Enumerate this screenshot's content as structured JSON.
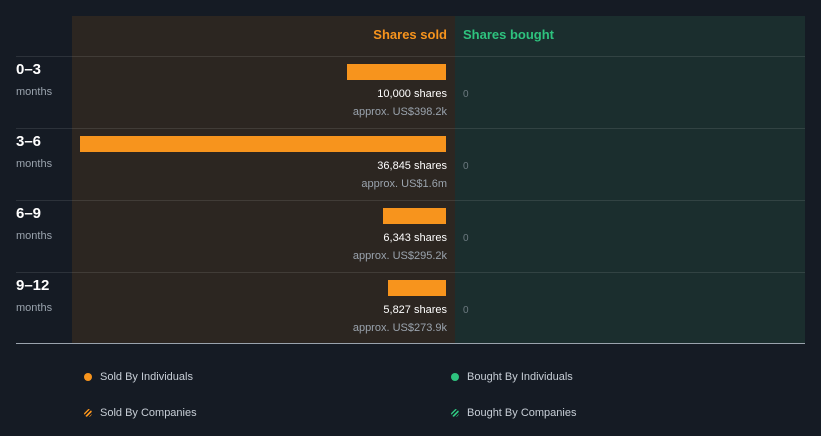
{
  "colors": {
    "sold": "#f7941d",
    "bought": "#2ec27e",
    "sold_panel": "#2c2621",
    "bought_panel": "#1b2e2e",
    "background": "#151b24"
  },
  "headers": {
    "sold": "Shares sold",
    "bought": "Shares bought"
  },
  "chart_data": {
    "type": "bar",
    "orientation": "horizontal",
    "categories": [
      "0–3",
      "3–6",
      "6–9",
      "9–12"
    ],
    "category_unit": "months",
    "series": [
      {
        "name": "Shares sold",
        "values": [
          10000,
          36845,
          6343,
          5827
        ],
        "labels": [
          "10,000 shares",
          "36,845 shares",
          "6,343 shares",
          "5,827 shares"
        ],
        "value_labels": [
          "approx. US$398.2k",
          "approx. US$1.6m",
          "approx. US$295.2k",
          "approx. US$273.9k"
        ]
      },
      {
        "name": "Shares bought",
        "values": [
          0,
          0,
          0,
          0
        ],
        "labels": [
          "0",
          "0",
          "0",
          "0"
        ]
      }
    ],
    "xlim": [
      0,
      36845
    ],
    "grid": false,
    "legend_placement": "bottom"
  },
  "legend": [
    {
      "label": "Sold By Individuals",
      "style": "solid",
      "color": "#f7941d"
    },
    {
      "label": "Bought By Individuals",
      "style": "solid",
      "color": "#2ec27e"
    },
    {
      "label": "Sold By Companies",
      "style": "hatched",
      "color": "#f7941d"
    },
    {
      "label": "Bought By Companies",
      "style": "hatched",
      "color": "#2ec27e"
    }
  ]
}
